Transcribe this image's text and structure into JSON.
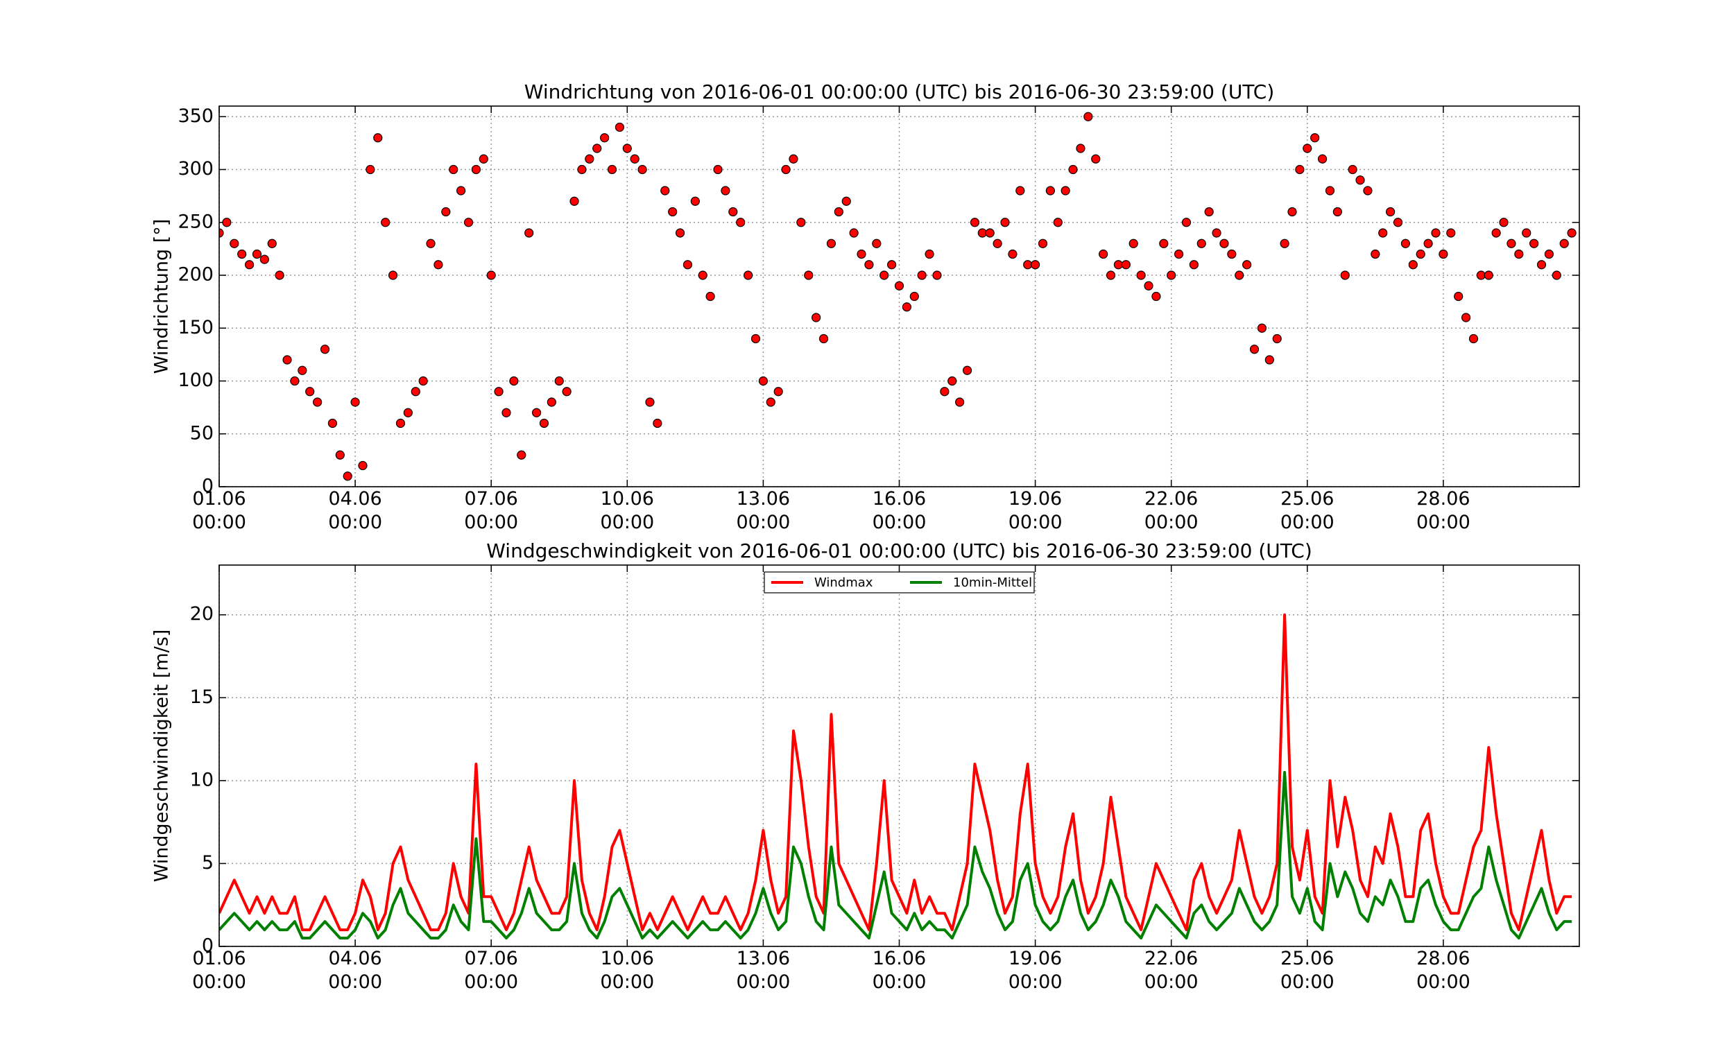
{
  "chart_data": [
    {
      "type": "scatter",
      "title": "Windrichtung von 2016-06-01 00:00:00 (UTC) bis 2016-06-30 23:59:00 (UTC)",
      "y_label": "Windrichtung [°]",
      "xlim": [
        0,
        720
      ],
      "ylim": [
        0,
        360
      ],
      "xticks": [
        {
          "value": 0,
          "label": "01.06 00:00"
        },
        {
          "value": 72,
          "label": "04.06 00:00"
        },
        {
          "value": 144,
          "label": "07.06 00:00"
        },
        {
          "value": 216,
          "label": "10.06 00:00"
        },
        {
          "value": 288,
          "label": "13.06 00:00"
        },
        {
          "value": 360,
          "label": "16.06 00:00"
        },
        {
          "value": 432,
          "label": "19.06 00:00"
        },
        {
          "value": 504,
          "label": "22.06 00:00"
        },
        {
          "value": 576,
          "label": "25.06 00:00"
        },
        {
          "value": 648,
          "label": "28.06 00:00"
        }
      ],
      "yticks": [
        0,
        50,
        100,
        150,
        200,
        250,
        300,
        350
      ],
      "grid": true,
      "color": "#ff0000",
      "x": [
        0,
        4,
        8,
        12,
        16,
        20,
        24,
        28,
        32,
        36,
        40,
        44,
        48,
        52,
        56,
        60,
        64,
        68,
        72,
        76,
        80,
        84,
        88,
        92,
        96,
        100,
        104,
        108,
        112,
        116,
        120,
        124,
        128,
        132,
        136,
        140,
        144,
        148,
        152,
        156,
        160,
        164,
        168,
        172,
        176,
        180,
        184,
        188,
        192,
        196,
        200,
        204,
        208,
        212,
        216,
        220,
        224,
        228,
        232,
        236,
        240,
        244,
        248,
        252,
        256,
        260,
        264,
        268,
        272,
        276,
        280,
        284,
        288,
        292,
        296,
        300,
        304,
        308,
        312,
        316,
        320,
        324,
        328,
        332,
        336,
        340,
        344,
        348,
        352,
        356,
        360,
        364,
        368,
        372,
        376,
        380,
        384,
        388,
        392,
        396,
        400,
        404,
        408,
        412,
        416,
        420,
        424,
        428,
        432,
        436,
        440,
        444,
        448,
        452,
        456,
        460,
        464,
        468,
        472,
        476,
        480,
        484,
        488,
        492,
        496,
        500,
        504,
        508,
        512,
        516,
        520,
        524,
        528,
        532,
        536,
        540,
        544,
        548,
        552,
        556,
        560,
        564,
        568,
        572,
        576,
        580,
        584,
        588,
        592,
        596,
        600,
        604,
        608,
        612,
        616,
        620,
        624,
        628,
        632,
        636,
        640,
        644,
        648,
        652,
        656,
        660,
        664,
        668,
        672,
        676,
        680,
        684,
        688,
        692,
        696,
        700,
        704,
        708,
        712,
        716
      ],
      "values": [
        240,
        250,
        230,
        220,
        210,
        220,
        215,
        230,
        200,
        120,
        100,
        110,
        90,
        80,
        130,
        60,
        30,
        10,
        80,
        20,
        300,
        330,
        250,
        200,
        60,
        70,
        90,
        100,
        230,
        210,
        260,
        300,
        280,
        250,
        300,
        310,
        200,
        90,
        70,
        100,
        30,
        240,
        70,
        60,
        80,
        100,
        90,
        270,
        300,
        310,
        320,
        330,
        300,
        340,
        320,
        310,
        300,
        80,
        60,
        280,
        260,
        240,
        210,
        270,
        200,
        180,
        300,
        280,
        260,
        250,
        200,
        140,
        100,
        80,
        90,
        300,
        310,
        250,
        200,
        160,
        140,
        230,
        260,
        270,
        240,
        220,
        210,
        230,
        200,
        210,
        190,
        170,
        180,
        200,
        220,
        200,
        90,
        100,
        80,
        110,
        250,
        240,
        240,
        230,
        250,
        220,
        280,
        210,
        210,
        230,
        280,
        250,
        280,
        300,
        320,
        350,
        310,
        220,
        200,
        210,
        210,
        230,
        200,
        190,
        180,
        230,
        200,
        220,
        250,
        210,
        230,
        260,
        240,
        230,
        220,
        200,
        210,
        130,
        150,
        120,
        140,
        230,
        260,
        300,
        320,
        330,
        310,
        280,
        260,
        200,
        300,
        290,
        280,
        220,
        240,
        260,
        250,
        230,
        210,
        220,
        230,
        240,
        220,
        240,
        180,
        160,
        140,
        200,
        200,
        240,
        250,
        230,
        220,
        240,
        230,
        210,
        220,
        200,
        230,
        240
      ]
    },
    {
      "type": "line",
      "title": "Windgeschwindigkeit von 2016-06-01 00:00:00 (UTC) bis 2016-06-30 23:59:00 (UTC)",
      "y_label": "Windgeschwindigkeit [m/s]",
      "xlim": [
        0,
        720
      ],
      "ylim": [
        0,
        23
      ],
      "xticks": [
        {
          "value": 0,
          "label": "01.06 00:00"
        },
        {
          "value": 72,
          "label": "04.06 00:00"
        },
        {
          "value": 144,
          "label": "07.06 00:00"
        },
        {
          "value": 216,
          "label": "10.06 00:00"
        },
        {
          "value": 288,
          "label": "13.06 00:00"
        },
        {
          "value": 360,
          "label": "16.06 00:00"
        },
        {
          "value": 432,
          "label": "19.06 00:00"
        },
        {
          "value": 504,
          "label": "22.06 00:00"
        },
        {
          "value": 576,
          "label": "25.06 00:00"
        },
        {
          "value": 648,
          "label": "28.06 00:00"
        }
      ],
      "yticks": [
        0,
        5,
        10,
        15,
        20
      ],
      "grid": true,
      "legend": "upper center",
      "x": [
        0,
        4,
        8,
        12,
        16,
        20,
        24,
        28,
        32,
        36,
        40,
        44,
        48,
        52,
        56,
        60,
        64,
        68,
        72,
        76,
        80,
        84,
        88,
        92,
        96,
        100,
        104,
        108,
        112,
        116,
        120,
        124,
        128,
        132,
        136,
        140,
        144,
        148,
        152,
        156,
        160,
        164,
        168,
        172,
        176,
        180,
        184,
        188,
        192,
        196,
        200,
        204,
        208,
        212,
        216,
        220,
        224,
        228,
        232,
        236,
        240,
        244,
        248,
        252,
        256,
        260,
        264,
        268,
        272,
        276,
        280,
        284,
        288,
        292,
        296,
        300,
        304,
        308,
        312,
        316,
        320,
        324,
        328,
        332,
        336,
        340,
        344,
        348,
        352,
        356,
        360,
        364,
        368,
        372,
        376,
        380,
        384,
        388,
        392,
        396,
        400,
        404,
        408,
        412,
        416,
        420,
        424,
        428,
        432,
        436,
        440,
        444,
        448,
        452,
        456,
        460,
        464,
        468,
        472,
        476,
        480,
        484,
        488,
        492,
        496,
        500,
        504,
        508,
        512,
        516,
        520,
        524,
        528,
        532,
        536,
        540,
        544,
        548,
        552,
        556,
        560,
        564,
        568,
        572,
        576,
        580,
        584,
        588,
        592,
        596,
        600,
        604,
        608,
        612,
        616,
        620,
        624,
        628,
        632,
        636,
        640,
        644,
        648,
        652,
        656,
        660,
        664,
        668,
        672,
        676,
        680,
        684,
        688,
        692,
        696,
        700,
        704,
        708,
        712,
        716
      ],
      "series": [
        {
          "name": "Windmax",
          "color": "#ff0000",
          "values": [
            2,
            3,
            4,
            3,
            2,
            3,
            2,
            3,
            2,
            2,
            3,
            1,
            1,
            2,
            3,
            2,
            1,
            1,
            2,
            4,
            3,
            1,
            2,
            5,
            6,
            4,
            3,
            2,
            1,
            1,
            2,
            5,
            3,
            2,
            11,
            3,
            3,
            2,
            1,
            2,
            4,
            6,
            4,
            3,
            2,
            2,
            3,
            10,
            4,
            2,
            1,
            3,
            6,
            7,
            5,
            3,
            1,
            2,
            1,
            2,
            3,
            2,
            1,
            2,
            3,
            2,
            2,
            3,
            2,
            1,
            2,
            4,
            7,
            4,
            2,
            3,
            13,
            10,
            6,
            3,
            2,
            14,
            5,
            4,
            3,
            2,
            1,
            5,
            10,
            4,
            3,
            2,
            4,
            2,
            3,
            2,
            2,
            1,
            3,
            5,
            11,
            9,
            7,
            4,
            2,
            3,
            8,
            11,
            5,
            3,
            2,
            3,
            6,
            8,
            4,
            2,
            3,
            5,
            9,
            6,
            3,
            2,
            1,
            3,
            5,
            4,
            3,
            2,
            1,
            4,
            5,
            3,
            2,
            3,
            4,
            7,
            5,
            3,
            2,
            3,
            5,
            20,
            6,
            4,
            7,
            3,
            2,
            10,
            6,
            9,
            7,
            4,
            3,
            6,
            5,
            8,
            6,
            3,
            3,
            7,
            8,
            5,
            3,
            2,
            2,
            4,
            6,
            7,
            12,
            8,
            5,
            2,
            1,
            3,
            5,
            7,
            4,
            2,
            3,
            3
          ]
        },
        {
          "name": "10min-Mittel",
          "color": "#008000",
          "values": [
            1,
            1.5,
            2,
            1.5,
            1,
            1.5,
            1,
            1.5,
            1,
            1,
            1.5,
            0.5,
            0.5,
            1,
            1.5,
            1,
            0.5,
            0.5,
            1,
            2,
            1.5,
            0.5,
            1,
            2.5,
            3.5,
            2,
            1.5,
            1,
            0.5,
            0.5,
            1,
            2.5,
            1.5,
            1,
            6.5,
            1.5,
            1.5,
            1,
            0.5,
            1,
            2,
            3.5,
            2,
            1.5,
            1,
            1,
            1.5,
            5,
            2,
            1,
            0.5,
            1.5,
            3,
            3.5,
            2.5,
            1.5,
            0.5,
            1,
            0.5,
            1,
            1.5,
            1,
            0.5,
            1,
            1.5,
            1,
            1,
            1.5,
            1,
            0.5,
            1,
            2,
            3.5,
            2,
            1,
            1.5,
            6,
            5,
            3,
            1.5,
            1,
            6,
            2.5,
            2,
            1.5,
            1,
            0.5,
            2.5,
            4.5,
            2,
            1.5,
            1,
            2,
            1,
            1.5,
            1,
            1,
            0.5,
            1.5,
            2.5,
            6,
            4.5,
            3.5,
            2,
            1,
            1.5,
            4,
            5,
            2.5,
            1.5,
            1,
            1.5,
            3,
            4,
            2,
            1,
            1.5,
            2.5,
            4,
            3,
            1.5,
            1,
            0.5,
            1.5,
            2.5,
            2,
            1.5,
            1,
            0.5,
            2,
            2.5,
            1.5,
            1,
            1.5,
            2,
            3.5,
            2.5,
            1.5,
            1,
            1.5,
            2.5,
            10.5,
            3,
            2,
            3.5,
            1.5,
            1,
            5,
            3,
            4.5,
            3.5,
            2,
            1.5,
            3,
            2.5,
            4,
            3,
            1.5,
            1.5,
            3.5,
            4,
            2.5,
            1.5,
            1,
            1,
            2,
            3,
            3.5,
            6,
            4,
            2.5,
            1,
            0.5,
            1.5,
            2.5,
            3.5,
            2,
            1,
            1.5,
            1.5
          ]
        }
      ]
    }
  ]
}
